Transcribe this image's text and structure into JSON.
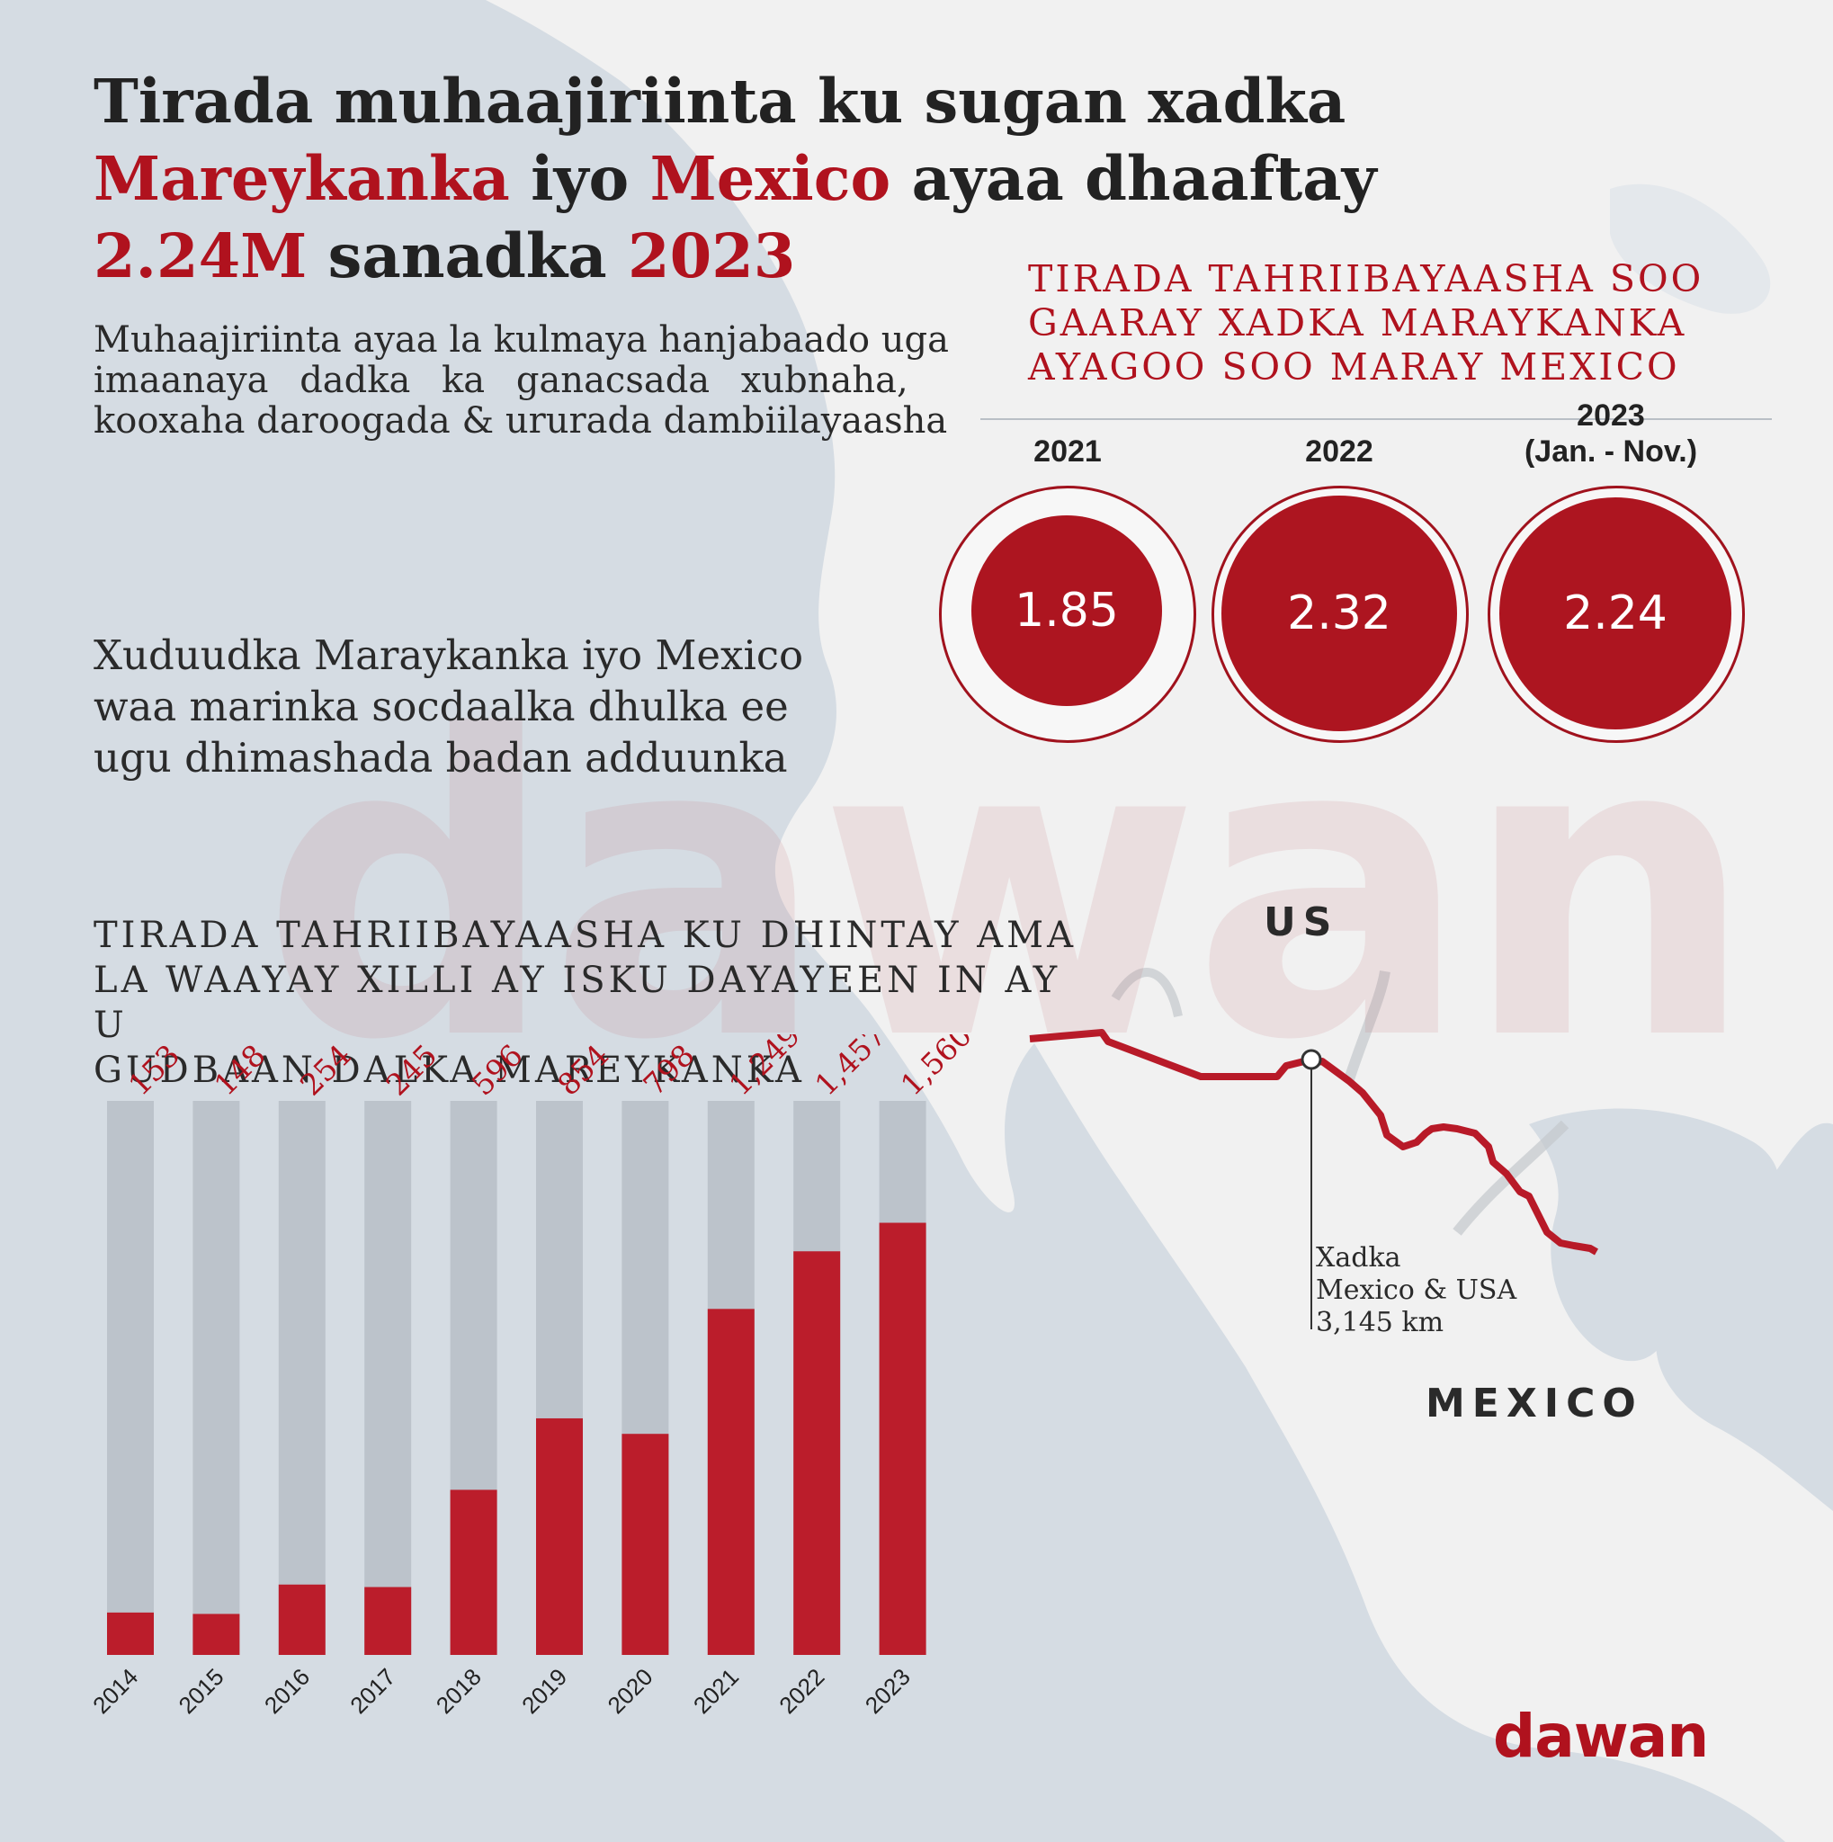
{
  "title": {
    "line1": "Tirada muhaajiriinta ku sugan xadka",
    "line2_part1": "Mareykanka",
    "line2_part2": " iyo ",
    "line2_part3": "Mexico",
    "line2_part4": " ayaa dhaaftay",
    "line3_part1": "2.24M",
    "line3_part2": " sanadka ",
    "line3_part3": "2023"
  },
  "intro": {
    "line1": "Muhaajiriinta ayaa la kulmaya hanjabaado uga",
    "line2": "imaanaya dadka ka ganacsada xubnaha,",
    "line3": "kooxaha daroogada & ururada dambiilayaasha"
  },
  "border_deadliest": {
    "line1": "Xuduudka Maraykanka iyo Mexico",
    "line2": "waa marinka socdaalka dhulka ee",
    "line3": "ugu dhimashada badan adduunka"
  },
  "encounters": {
    "heading_line1": "TIRADA TAHRIIBAYAASHA SOO",
    "heading_line2": "GAARAY XADKA MARAYKANKA",
    "heading_line3": "AYAGOO SOO MARAY MEXICO",
    "items": [
      {
        "year": "2021",
        "year_note": "",
        "value": "1.85"
      },
      {
        "year": "2022",
        "year_note": "",
        "value": "2.32"
      },
      {
        "year": "2023",
        "year_note": "(Jan. - Nov.)",
        "value": "2.24"
      }
    ]
  },
  "deaths": {
    "heading_line1": "TIRADA TAHRIIBAYAASHA KU DHINTAY AMA",
    "heading_line2": "LA WAAYAY XILLI AY ISKU DAYAYEEN IN AY U",
    "heading_line3": "GUDBAAN DALKA MAREYKANKA"
  },
  "chart_data": {
    "type": "bar",
    "title": "TIRADA TAHRIIBAYAASHA KU DHINTAY AMA LA WAAYAY XILLI AY ISKU DAYAYEEN IN AY U GUDBAAN DALKA MAREYKANKA",
    "categories": [
      "2014",
      "2015",
      "2016",
      "2017",
      "2018",
      "2019",
      "2020",
      "2021",
      "2022",
      "2023"
    ],
    "values": [
      153,
      148,
      254,
      245,
      596,
      854,
      798,
      1249,
      1457,
      1560
    ],
    "value_labels": [
      "153",
      "148",
      "254",
      "245",
      "596",
      "854",
      "798",
      "1,249",
      "1,457",
      "1,560"
    ],
    "ylim": [
      0,
      2000
    ],
    "xlabel": "",
    "ylabel": "",
    "colors": {
      "bar": "#bb1d2b",
      "track": "#bcc3cb",
      "label": "#b0121e"
    }
  },
  "map": {
    "us_label": "US",
    "mexico_label": "MEXICO",
    "border_note_line1": "Xadka",
    "border_note_line2": "Mexico & USA",
    "border_note_line3": "3,145 km"
  },
  "watermark": "dawan",
  "logo": "dawan",
  "colors": {
    "accent": "#b0121e",
    "disc": "#ad1520",
    "background": "#d5dce3",
    "land": "#f1f1f1"
  }
}
